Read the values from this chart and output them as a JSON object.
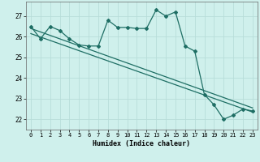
{
  "xlabel": "Humidex (Indice chaleur)",
  "bg_color": "#cff0ec",
  "grid_color": "#b8ddd9",
  "line_color": "#1e6e64",
  "xlim": [
    -0.5,
    23.5
  ],
  "ylim": [
    21.5,
    27.7
  ],
  "xticks": [
    0,
    1,
    2,
    3,
    4,
    5,
    6,
    7,
    8,
    9,
    10,
    11,
    12,
    13,
    14,
    15,
    16,
    17,
    18,
    19,
    20,
    21,
    22,
    23
  ],
  "yticks": [
    22,
    23,
    24,
    25,
    26,
    27
  ],
  "series1_x": [
    0,
    1,
    2,
    3,
    4,
    5,
    6,
    7,
    8,
    9,
    10,
    11,
    12,
    13,
    14,
    15,
    16,
    17,
    18,
    19,
    20,
    21,
    22,
    23
  ],
  "series1_y": [
    26.5,
    25.9,
    26.5,
    26.3,
    25.9,
    25.6,
    25.55,
    25.55,
    26.8,
    26.45,
    26.45,
    26.4,
    26.4,
    27.3,
    27.0,
    27.2,
    25.55,
    25.3,
    23.2,
    22.7,
    22.0,
    22.2,
    22.5,
    22.4
  ],
  "trend1_x": [
    0,
    23
  ],
  "trend1_y": [
    26.4,
    22.55
  ],
  "trend2_x": [
    0,
    23
  ],
  "trend2_y": [
    26.15,
    22.35
  ],
  "markersize": 2.0,
  "linewidth": 0.9
}
